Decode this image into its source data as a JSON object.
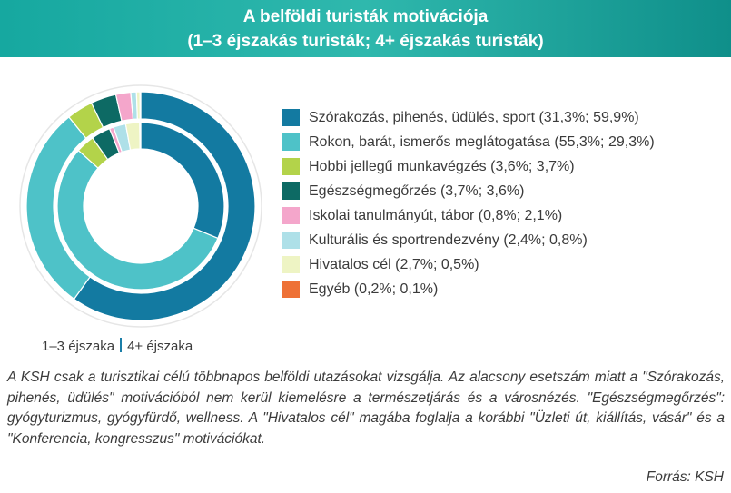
{
  "header": {
    "title_line1": "A belföldi turisták motivációja",
    "title_line2": "(1–3 éjszakás turisták; 4+ éjszakás turisták)"
  },
  "ring_legend": {
    "inner": "1–3 éjszaka",
    "outer": "4+ éjszaka"
  },
  "note": "A KSH csak a turisztikai célú többnapos belföldi utazásokat vizsgálja. Az alacsony esetszám miatt a \"Szórakozás, pihenés, üdülés\" motivációból nem kerül kiemelésre a természetjárás és a városnézés. \"Egészségmegőrzés\": gyógyturizmus, gyógyfürdő, wellness. A \"Hivatalos cél\" magába foglalja a korábbi \"Üzleti út, kiállítás, vásár\" és a \"Konferencia, kongresszus\" motivációkat.",
  "source": "Forrás: KSH",
  "chart_data": {
    "type": "pie",
    "variant": "nested-donut",
    "title": "A belföldi turisták motivációja",
    "subtitle": "(1–3 éjszakás turisták; 4+ éjszakás turisták)",
    "legend_position": "right",
    "categories": [
      "Szórakozás, pihenés, üdülés, sport",
      "Rokon, barát, ismerős meglátogatása",
      "Hobbi jellegű munkavégzés",
      "Egészségmegőrzés",
      "Iskolai tanulmányút, tábor",
      "Kulturális és sportrendezvény",
      "Hivatalos cél",
      "Egyéb"
    ],
    "legend_labels": [
      "Szórakozás, pihenés, üdülés, sport (31,3%; 59,9%)",
      "Rokon, barát, ismerős meglátogatása (55,3%; 29,3%)",
      "Hobbi jellegű munkavégzés (3,6%; 3,7%)",
      "Egészségmegőrzés (3,7%; 3,6%)",
      "Iskolai tanulmányút, tábor (0,8%; 2,1%)",
      "Kulturális és sportrendezvény (2,4%; 0,8%)",
      "Hivatalos cél (2,7%; 0,5%)",
      "Egyéb (0,2%; 0,1%)"
    ],
    "colors": [
      "#137aa1",
      "#4ec2c8",
      "#b3d34a",
      "#0d6a64",
      "#f4a6cb",
      "#aee0e8",
      "#eef4c4",
      "#ee7136"
    ],
    "series": [
      {
        "name": "1–3 éjszaka",
        "ring": "inner",
        "values": [
          31.3,
          55.3,
          3.6,
          3.7,
          0.8,
          2.4,
          2.7,
          0.2
        ]
      },
      {
        "name": "4+ éjszaka",
        "ring": "outer",
        "values": [
          59.9,
          29.3,
          3.7,
          3.6,
          2.1,
          0.8,
          0.5,
          0.1
        ]
      }
    ]
  }
}
